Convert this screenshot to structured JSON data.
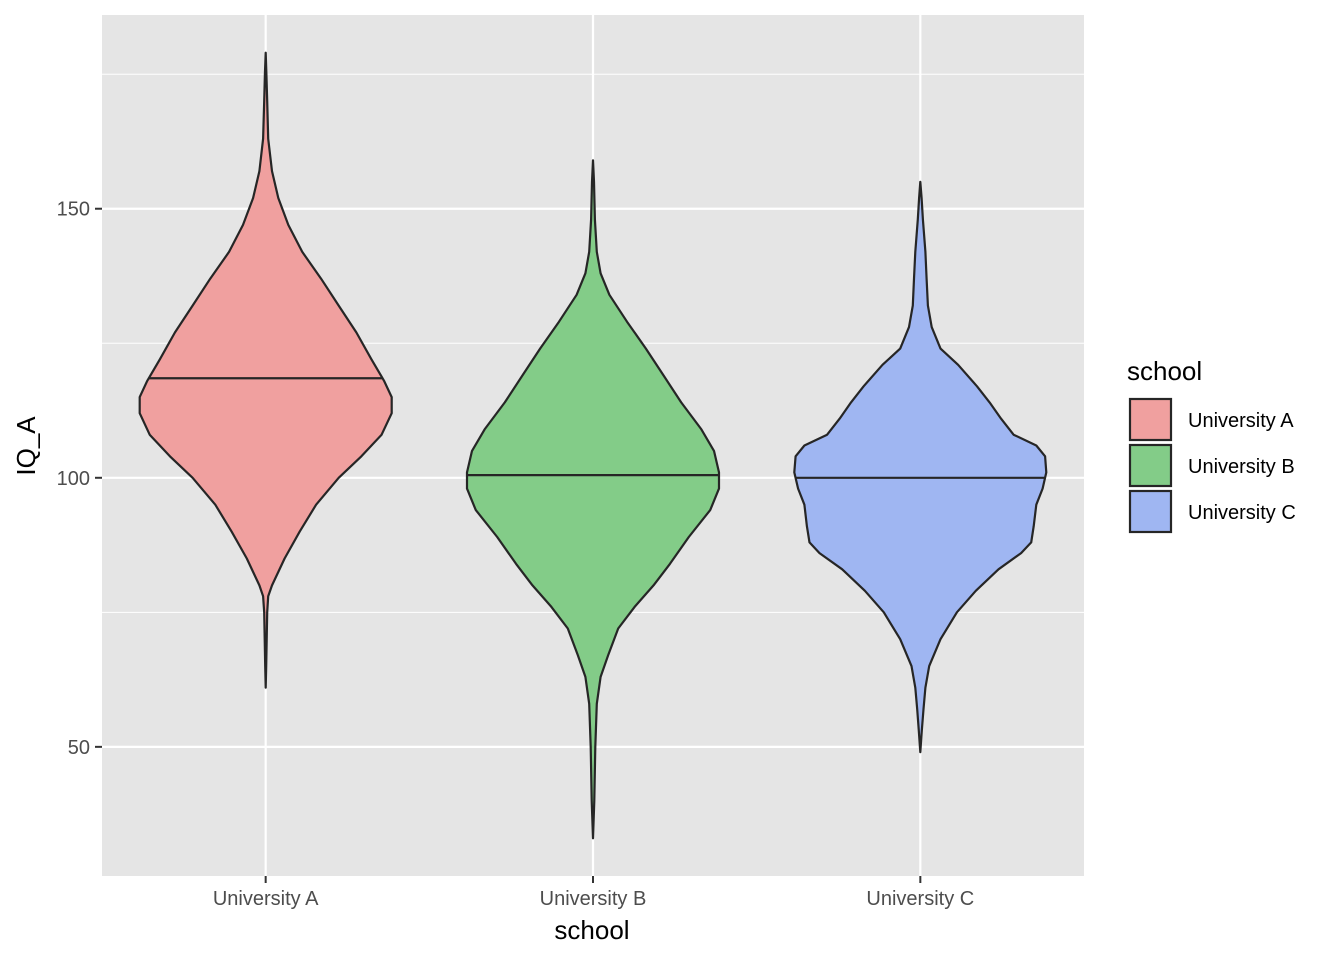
{
  "chart_data": {
    "type": "violin",
    "xlabel": "school",
    "ylabel": "IQ_A",
    "categories": [
      "University A",
      "University B",
      "University C"
    ],
    "ylim": [
      26,
      186
    ],
    "y_ticks": [
      50,
      100,
      150
    ],
    "y_tick_labels": [
      "50",
      "100",
      "150"
    ],
    "grid": true,
    "legend": {
      "title": "school",
      "position": "right",
      "entries": [
        "University A",
        "University B",
        "University C"
      ]
    },
    "colors": {
      "University A": "#f0a09f",
      "University B": "#83cc88",
      "University C": "#9fb6f2",
      "panel": "#e5e5e5",
      "grid": "#ffffff",
      "outline": "#262626"
    },
    "series": [
      {
        "name": "University A",
        "median": 118.5,
        "min": 61,
        "max": 179,
        "density_profile": [
          [
            61,
            0.0
          ],
          [
            65,
            0.004
          ],
          [
            70,
            0.008
          ],
          [
            75,
            0.012
          ],
          [
            78,
            0.02
          ],
          [
            80,
            0.05
          ],
          [
            85,
            0.15
          ],
          [
            90,
            0.27
          ],
          [
            95,
            0.4
          ],
          [
            100,
            0.58
          ],
          [
            104,
            0.76
          ],
          [
            108,
            0.92
          ],
          [
            112,
            1.0
          ],
          [
            115,
            1.0
          ],
          [
            118,
            0.94
          ],
          [
            122,
            0.84
          ],
          [
            127,
            0.72
          ],
          [
            132,
            0.58
          ],
          [
            137,
            0.44
          ],
          [
            142,
            0.29
          ],
          [
            147,
            0.18
          ],
          [
            152,
            0.1
          ],
          [
            157,
            0.05
          ],
          [
            163,
            0.02
          ],
          [
            170,
            0.012
          ],
          [
            175,
            0.006
          ],
          [
            179,
            0.0
          ]
        ]
      },
      {
        "name": "University B",
        "median": 100.5,
        "min": 33,
        "max": 159,
        "density_profile": [
          [
            33,
            0.0
          ],
          [
            40,
            0.01
          ],
          [
            50,
            0.018
          ],
          [
            58,
            0.03
          ],
          [
            63,
            0.06
          ],
          [
            67,
            0.12
          ],
          [
            72,
            0.2
          ],
          [
            76,
            0.33
          ],
          [
            80,
            0.48
          ],
          [
            84,
            0.61
          ],
          [
            89,
            0.76
          ],
          [
            94,
            0.93
          ],
          [
            98,
            1.0
          ],
          [
            101,
            1.0
          ],
          [
            105,
            0.96
          ],
          [
            109,
            0.86
          ],
          [
            114,
            0.7
          ],
          [
            119,
            0.56
          ],
          [
            124,
            0.42
          ],
          [
            129,
            0.27
          ],
          [
            134,
            0.13
          ],
          [
            138,
            0.06
          ],
          [
            142,
            0.03
          ],
          [
            148,
            0.015
          ],
          [
            155,
            0.008
          ],
          [
            159,
            0.0
          ]
        ]
      },
      {
        "name": "University C",
        "median": 100,
        "min": 49,
        "max": 155,
        "density_profile": [
          [
            49,
            0.0
          ],
          [
            53,
            0.012
          ],
          [
            57,
            0.025
          ],
          [
            61,
            0.04
          ],
          [
            65,
            0.07
          ],
          [
            70,
            0.16
          ],
          [
            75,
            0.29
          ],
          [
            79,
            0.44
          ],
          [
            83,
            0.62
          ],
          [
            86,
            0.8
          ],
          [
            88,
            0.88
          ],
          [
            91,
            0.9
          ],
          [
            95,
            0.92
          ],
          [
            98,
            0.97
          ],
          [
            101,
            1.0
          ],
          [
            104,
            0.99
          ],
          [
            106,
            0.92
          ],
          [
            108,
            0.74
          ],
          [
            111,
            0.64
          ],
          [
            114,
            0.55
          ],
          [
            117,
            0.45
          ],
          [
            121,
            0.3
          ],
          [
            124,
            0.16
          ],
          [
            128,
            0.09
          ],
          [
            132,
            0.06
          ],
          [
            137,
            0.05
          ],
          [
            142,
            0.04
          ],
          [
            148,
            0.02
          ],
          [
            152,
            0.01
          ],
          [
            155,
            0.0
          ]
        ]
      }
    ]
  }
}
